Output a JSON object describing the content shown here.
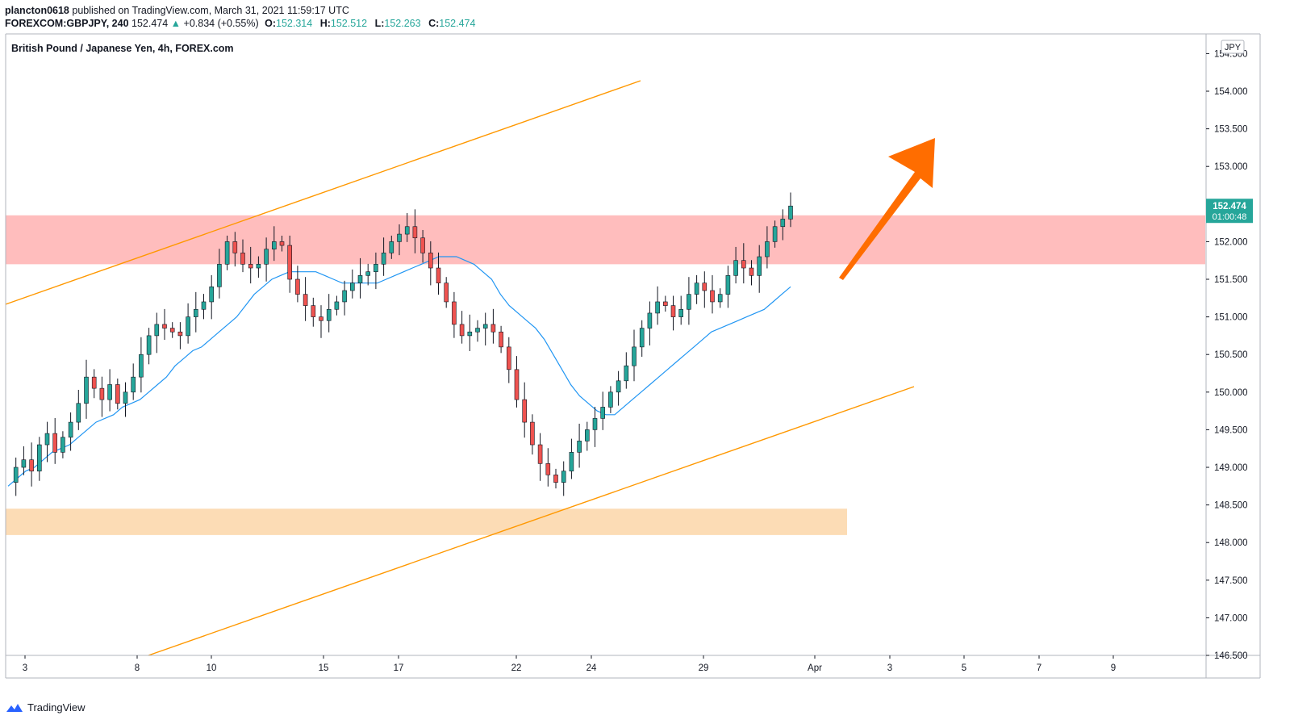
{
  "header": {
    "author": "plancton0618",
    "published_text": "published on TradingView.com, March 31, 2021 11:59:17 UTC",
    "symbol": "FOREXCOM:GBPJPY, 240",
    "last": "152.474",
    "change_arrow": "▲",
    "change": "+0.834 (+0.55%)",
    "o_label": "O:",
    "o_value": "152.314",
    "h_label": "H:",
    "h_value": "152.512",
    "l_label": "L:",
    "l_value": "152.263",
    "c_label": "C:",
    "c_value": "152.474"
  },
  "footer": {
    "brand": "TradingView",
    "logo_icon": "tradingview-logo-icon"
  },
  "chart_data": {
    "type": "candlestick",
    "title": "British Pound / Japanese Yen, 4h, FOREX.com",
    "currency_label": "JPY",
    "ylim": [
      146.5,
      154.5
    ],
    "y_ticks": [
      "154.500",
      "154.000",
      "153.500",
      "153.000",
      "152.500",
      "152.000",
      "151.500",
      "151.000",
      "150.500",
      "150.000",
      "149.500",
      "149.000",
      "148.500",
      "148.000",
      "147.500",
      "147.000",
      "146.500"
    ],
    "x_ticks": [
      "3",
      "8",
      "10",
      "15",
      "17",
      "22",
      "24",
      "29",
      "Apr",
      "3",
      "5",
      "7",
      "9"
    ],
    "last_price_label": "152.474",
    "countdown_label": "01:00:48",
    "colors": {
      "up": "#26a69a",
      "down": "#ef5350",
      "ema": "#2196f3",
      "channel": "#ff9800",
      "resistance_zone": "#ffbdbd",
      "support_zone": "#fcdcb5",
      "arrow": "#ff6d00",
      "price_tag": "#26a69a"
    },
    "resistance_zone": [
      151.7,
      152.35
    ],
    "support_zone": [
      148.1,
      148.45
    ],
    "forecast_arrow": {
      "from": [
        "30",
        151.5
      ],
      "to": [
        "Apr 4",
        153.4
      ],
      "direction": "up"
    },
    "price_series": [
      148.8,
      149.0,
      149.1,
      148.95,
      149.3,
      149.45,
      149.2,
      149.4,
      149.6,
      149.85,
      150.2,
      150.05,
      149.9,
      150.1,
      149.85,
      150.0,
      150.2,
      150.5,
      150.75,
      150.9,
      150.85,
      150.8,
      150.75,
      151.0,
      151.1,
      151.2,
      151.4,
      151.7,
      152.0,
      151.85,
      151.7,
      151.65,
      151.7,
      151.9,
      152.0,
      151.95,
      151.5,
      151.3,
      151.15,
      151.0,
      150.95,
      151.1,
      151.2,
      151.35,
      151.45,
      151.55,
      151.6,
      151.7,
      151.85,
      152.0,
      152.1,
      152.2,
      152.05,
      151.85,
      151.65,
      151.45,
      151.2,
      150.9,
      150.75,
      150.8,
      150.85,
      150.9,
      150.8,
      150.6,
      150.3,
      149.9,
      149.6,
      149.3,
      149.05,
      148.9,
      148.8,
      148.95,
      149.2,
      149.35,
      149.5,
      149.65,
      149.8,
      150.0,
      150.15,
      150.35,
      150.6,
      150.85,
      151.05,
      151.2,
      151.15,
      151.0,
      151.1,
      151.3,
      151.45,
      151.35,
      151.2,
      151.3,
      151.55,
      151.75,
      151.65,
      151.55,
      151.8,
      152.0,
      152.2,
      152.3,
      152.474
    ],
    "ema_series": [
      148.75,
      148.85,
      148.95,
      149.0,
      149.1,
      149.2,
      149.25,
      149.3,
      149.4,
      149.5,
      149.6,
      149.65,
      149.7,
      149.8,
      149.85,
      149.9,
      150.0,
      150.1,
      150.2,
      150.35,
      150.45,
      150.55,
      150.6,
      150.7,
      150.8,
      150.9,
      151.0,
      151.15,
      151.3,
      151.4,
      151.5,
      151.55,
      151.6,
      151.6,
      151.6,
      151.6,
      151.55,
      151.5,
      151.45,
      151.45,
      151.45,
      151.45,
      151.45,
      151.5,
      151.55,
      151.6,
      151.65,
      151.7,
      151.75,
      151.8,
      151.8,
      151.8,
      151.75,
      151.7,
      151.6,
      151.5,
      151.3,
      151.15,
      151.05,
      150.95,
      150.85,
      150.7,
      150.5,
      150.3,
      150.1,
      149.95,
      149.85,
      149.75,
      149.7,
      149.7,
      149.8,
      149.9,
      150.0,
      150.1,
      150.2,
      150.3,
      150.4,
      150.5,
      150.6,
      150.7,
      150.8,
      150.85,
      150.9,
      150.95,
      151.0,
      151.05,
      151.1,
      151.2,
      151.3,
      151.4
    ]
  }
}
